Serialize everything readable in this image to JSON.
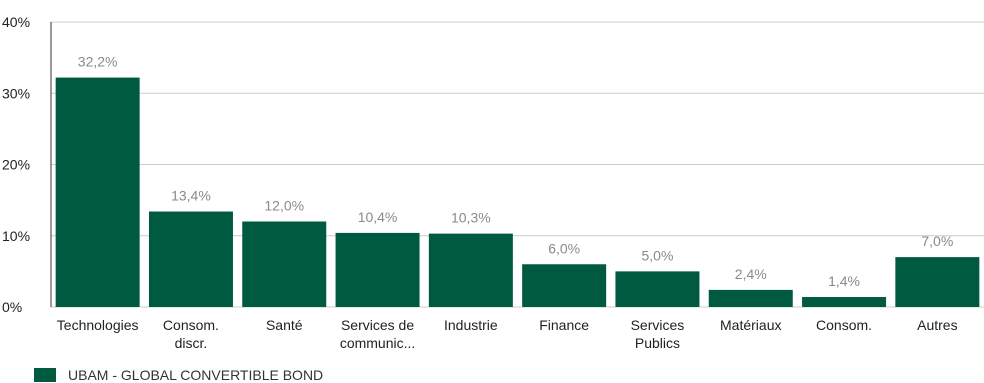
{
  "chart_data": {
    "type": "bar",
    "categories": [
      [
        "Technologies"
      ],
      [
        "Consom.",
        "discr."
      ],
      [
        "Santé"
      ],
      [
        "Services de",
        "communic..."
      ],
      [
        "Industrie"
      ],
      [
        "Finance"
      ],
      [
        "Services",
        "Publics"
      ],
      [
        "Matériaux"
      ],
      [
        "Consom."
      ],
      [
        "Autres"
      ]
    ],
    "series": [
      {
        "name": "UBAM - GLOBAL CONVERTIBLE BOND",
        "values": [
          32.2,
          13.4,
          12.0,
          10.4,
          10.3,
          6.0,
          5.0,
          2.4,
          1.4,
          7.0
        ],
        "labels": [
          "32,2%",
          "13,4%",
          "12,0%",
          "10,4%",
          "10,3%",
          "6,0%",
          "5,0%",
          "2,4%",
          "1,4%",
          "7,0%"
        ]
      }
    ],
    "ylim": [
      0,
      40
    ],
    "yticks": [
      0,
      10,
      20,
      30,
      40
    ],
    "ytick_labels": [
      "0%",
      "10%",
      "20%",
      "30%",
      "40%"
    ],
    "grid": true,
    "legend_position": "bottom-left",
    "colors": {
      "bar": "#005a3f",
      "grid": "#cccccc",
      "axis": "#333333"
    }
  }
}
